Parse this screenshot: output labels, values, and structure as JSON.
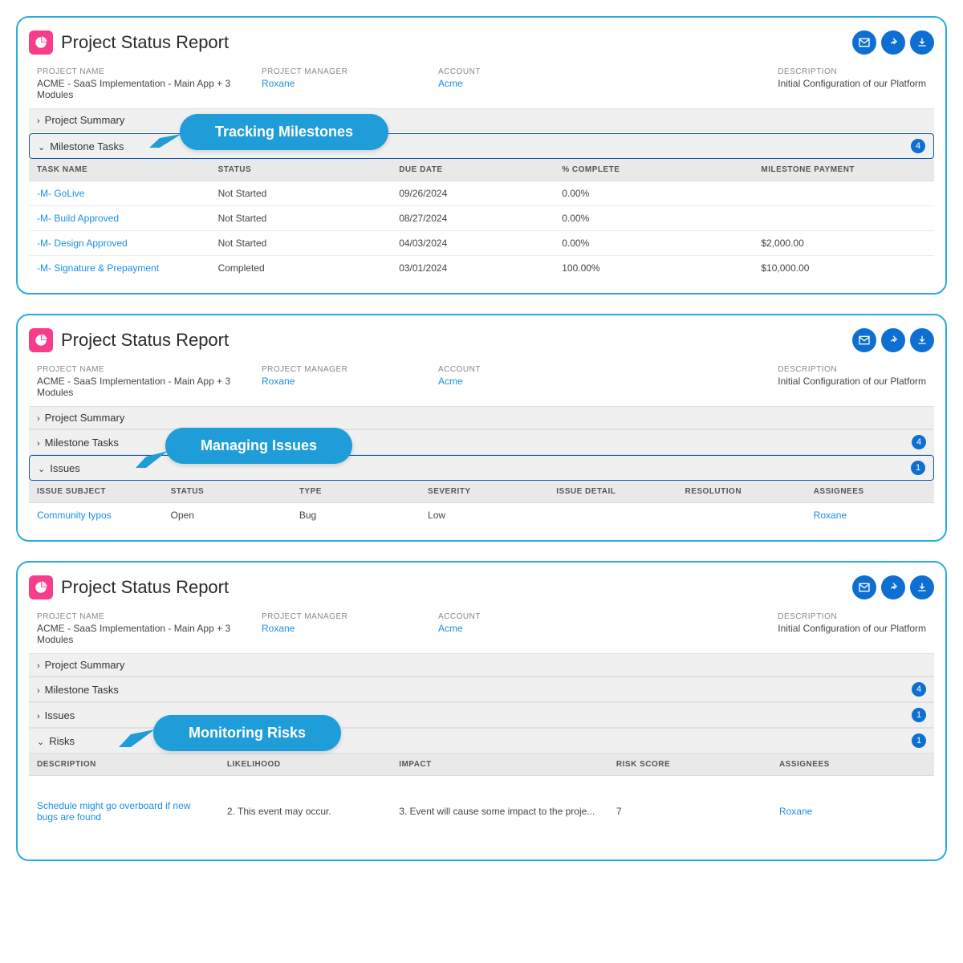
{
  "colors": {
    "panel_border": "#29abe2",
    "logo_bg": "#f73d8a",
    "action_bg": "#0d6fd1",
    "callout_bg": "#1f9dd9",
    "link": "#1a8fe3",
    "header_bg": "#e9e9e9",
    "section_bg": "#f0f0f0"
  },
  "shared": {
    "title": "Project Status Report",
    "info": {
      "project_name_label": "PROJECT NAME",
      "project_name": "ACME - SaaS Implementation - Main App + 3 Modules",
      "manager_label": "PROJECT MANAGER",
      "manager": "Roxane",
      "account_label": "ACCOUNT",
      "account": "Acme",
      "description_label": "DESCRIPTION",
      "description": "Initial Configuration of our Platform"
    }
  },
  "panel1": {
    "callout": "Tracking Milestones",
    "sections": {
      "summary": "Project Summary",
      "milestone": "Milestone Tasks",
      "milestone_count": "4"
    },
    "table": {
      "headers": [
        "TASK NAME",
        "STATUS",
        "DUE DATE",
        "% COMPLETE",
        "MILESTONE PAYMENT"
      ],
      "rows": [
        {
          "name": "-M- GoLive",
          "status": "Not Started",
          "due": "09/26/2024",
          "pct": "0.00%",
          "pay": ""
        },
        {
          "name": "-M- Build Approved",
          "status": "Not Started",
          "due": "08/27/2024",
          "pct": "0.00%",
          "pay": ""
        },
        {
          "name": "-M- Design Approved",
          "status": "Not Started",
          "due": "04/03/2024",
          "pct": "0.00%",
          "pay": "$2,000.00"
        },
        {
          "name": "-M- Signature & Prepayment",
          "status": "Completed",
          "due": "03/01/2024",
          "pct": "100.00%",
          "pay": "$10,000.00"
        }
      ]
    }
  },
  "panel2": {
    "callout": "Managing Issues",
    "sections": {
      "summary": "Project Summary",
      "milestone": "Milestone Tasks",
      "milestone_count": "4",
      "issues": "Issues",
      "issues_count": "1"
    },
    "table": {
      "headers": [
        "ISSUE SUBJECT",
        "STATUS",
        "TYPE",
        "SEVERITY",
        "ISSUE DETAIL",
        "RESOLUTION",
        "ASSIGNEES"
      ],
      "rows": [
        {
          "subject": "Community typos",
          "status": "Open",
          "type": "Bug",
          "severity": "Low",
          "detail": "",
          "resolution": "",
          "assignees": "Roxane"
        }
      ]
    }
  },
  "panel3": {
    "callout": "Monitoring Risks",
    "sections": {
      "summary": "Project Summary",
      "milestone": "Milestone Tasks",
      "milestone_count": "4",
      "issues": "Issues",
      "issues_count": "1",
      "risks": "Risks",
      "risks_count": "1"
    },
    "table": {
      "headers": [
        "DESCRIPTION",
        "LIKELIHOOD",
        "IMPACT",
        "RISK SCORE",
        "ASSIGNEES"
      ],
      "rows": [
        {
          "desc": "Schedule might go overboard if new bugs are found",
          "likelihood": "2. This event may occur.",
          "impact": "3. Event will cause some impact to the proje...",
          "score": "7",
          "assignees": "Roxane"
        }
      ]
    }
  }
}
